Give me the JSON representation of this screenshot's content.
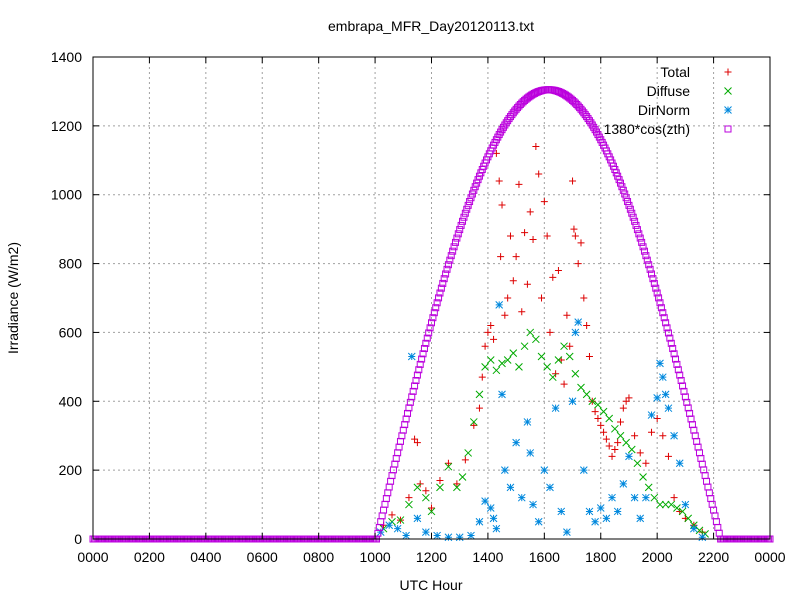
{
  "chart_data": {
    "type": "scatter",
    "title": "embrapa_MFR_Day20120113.txt",
    "xlabel": "UTC Hour",
    "ylabel": "Irradiance (W/m2)",
    "xlim": [
      0,
      24
    ],
    "ylim": [
      0,
      1400
    ],
    "x_ticks": [
      {
        "value": 0,
        "label": "0000"
      },
      {
        "value": 2,
        "label": "0200"
      },
      {
        "value": 4,
        "label": "0400"
      },
      {
        "value": 6,
        "label": "0600"
      },
      {
        "value": 8,
        "label": "0800"
      },
      {
        "value": 10,
        "label": "1000"
      },
      {
        "value": 12,
        "label": "1200"
      },
      {
        "value": 14,
        "label": "1400"
      },
      {
        "value": 16,
        "label": "1600"
      },
      {
        "value": 18,
        "label": "1800"
      },
      {
        "value": 20,
        "label": "2000"
      },
      {
        "value": 22,
        "label": "2200"
      },
      {
        "value": 24,
        "label": "0000"
      }
    ],
    "y_ticks": [
      0,
      200,
      400,
      600,
      800,
      1000,
      1200,
      1400
    ],
    "grid": true,
    "legend_position": "top-right",
    "series": [
      {
        "name": "Total",
        "marker": "plus",
        "color": "#dd0000",
        "points": [
          [
            10.3,
            40
          ],
          [
            10.6,
            70
          ],
          [
            10.9,
            55
          ],
          [
            11.2,
            120
          ],
          [
            11.4,
            290
          ],
          [
            11.5,
            280
          ],
          [
            11.6,
            160
          ],
          [
            11.8,
            140
          ],
          [
            12.0,
            90
          ],
          [
            12.3,
            170
          ],
          [
            12.6,
            220
          ],
          [
            12.9,
            160
          ],
          [
            13.2,
            230
          ],
          [
            13.5,
            330
          ],
          [
            13.7,
            380
          ],
          [
            13.8,
            470
          ],
          [
            13.9,
            560
          ],
          [
            14.0,
            600
          ],
          [
            14.1,
            620
          ],
          [
            14.2,
            580
          ],
          [
            14.3,
            1120
          ],
          [
            14.4,
            1040
          ],
          [
            14.45,
            820
          ],
          [
            14.5,
            970
          ],
          [
            14.6,
            650
          ],
          [
            14.7,
            700
          ],
          [
            14.8,
            880
          ],
          [
            14.9,
            750
          ],
          [
            15.0,
            820
          ],
          [
            15.1,
            1030
          ],
          [
            15.2,
            660
          ],
          [
            15.3,
            890
          ],
          [
            15.4,
            740
          ],
          [
            15.5,
            950
          ],
          [
            15.6,
            870
          ],
          [
            15.7,
            1140
          ],
          [
            15.8,
            1060
          ],
          [
            15.9,
            700
          ],
          [
            16.0,
            980
          ],
          [
            16.1,
            880
          ],
          [
            16.2,
            600
          ],
          [
            16.3,
            760
          ],
          [
            16.4,
            480
          ],
          [
            16.5,
            780
          ],
          [
            16.6,
            520
          ],
          [
            16.7,
            450
          ],
          [
            16.8,
            650
          ],
          [
            16.9,
            560
          ],
          [
            17.0,
            1040
          ],
          [
            17.05,
            900
          ],
          [
            17.1,
            880
          ],
          [
            17.2,
            800
          ],
          [
            17.3,
            860
          ],
          [
            17.4,
            700
          ],
          [
            17.5,
            620
          ],
          [
            17.6,
            530
          ],
          [
            17.7,
            400
          ],
          [
            17.8,
            370
          ],
          [
            17.9,
            350
          ],
          [
            18.0,
            330
          ],
          [
            18.1,
            310
          ],
          [
            18.2,
            290
          ],
          [
            18.3,
            270
          ],
          [
            18.4,
            240
          ],
          [
            18.5,
            260
          ],
          [
            18.6,
            280
          ],
          [
            18.7,
            340
          ],
          [
            18.8,
            380
          ],
          [
            18.9,
            400
          ],
          [
            19.0,
            410
          ],
          [
            19.2,
            300
          ],
          [
            19.4,
            250
          ],
          [
            19.6,
            220
          ],
          [
            19.8,
            310
          ],
          [
            20.0,
            350
          ],
          [
            20.2,
            300
          ],
          [
            20.4,
            240
          ],
          [
            20.6,
            120
          ],
          [
            20.8,
            80
          ],
          [
            21.0,
            60
          ],
          [
            21.3,
            40
          ],
          [
            21.6,
            20
          ]
        ]
      },
      {
        "name": "Diffuse",
        "marker": "cross",
        "color": "#00aa00",
        "points": [
          [
            10.3,
            30
          ],
          [
            10.6,
            50
          ],
          [
            10.9,
            55
          ],
          [
            11.2,
            100
          ],
          [
            11.5,
            150
          ],
          [
            11.8,
            120
          ],
          [
            12.0,
            80
          ],
          [
            12.3,
            150
          ],
          [
            12.6,
            210
          ],
          [
            12.9,
            150
          ],
          [
            13.1,
            180
          ],
          [
            13.3,
            250
          ],
          [
            13.5,
            340
          ],
          [
            13.7,
            420
          ],
          [
            13.9,
            500
          ],
          [
            14.1,
            520
          ],
          [
            14.3,
            490
          ],
          [
            14.5,
            510
          ],
          [
            14.7,
            520
          ],
          [
            14.9,
            540
          ],
          [
            15.1,
            500
          ],
          [
            15.3,
            560
          ],
          [
            15.5,
            600
          ],
          [
            15.7,
            580
          ],
          [
            15.9,
            530
          ],
          [
            16.1,
            500
          ],
          [
            16.3,
            470
          ],
          [
            16.5,
            520
          ],
          [
            16.7,
            560
          ],
          [
            16.9,
            530
          ],
          [
            17.1,
            480
          ],
          [
            17.3,
            440
          ],
          [
            17.5,
            420
          ],
          [
            17.7,
            400
          ],
          [
            17.9,
            390
          ],
          [
            18.1,
            370
          ],
          [
            18.3,
            350
          ],
          [
            18.5,
            320
          ],
          [
            18.7,
            300
          ],
          [
            18.9,
            280
          ],
          [
            19.1,
            260
          ],
          [
            19.3,
            220
          ],
          [
            19.5,
            180
          ],
          [
            19.7,
            150
          ],
          [
            19.9,
            120
          ],
          [
            20.1,
            100
          ],
          [
            20.3,
            100
          ],
          [
            20.5,
            100
          ],
          [
            20.7,
            90
          ],
          [
            20.9,
            80
          ],
          [
            21.1,
            60
          ],
          [
            21.3,
            40
          ],
          [
            21.5,
            25
          ],
          [
            21.7,
            15
          ]
        ]
      },
      {
        "name": "DirNorm",
        "marker": "star",
        "color": "#0088dd",
        "points": [
          [
            10.2,
            20
          ],
          [
            10.5,
            40
          ],
          [
            10.8,
            30
          ],
          [
            11.1,
            10
          ],
          [
            11.3,
            530
          ],
          [
            11.5,
            60
          ],
          [
            11.8,
            20
          ],
          [
            12.2,
            10
          ],
          [
            12.6,
            5
          ],
          [
            13.0,
            5
          ],
          [
            13.4,
            10
          ],
          [
            13.7,
            50
          ],
          [
            13.9,
            110
          ],
          [
            14.1,
            90
          ],
          [
            14.2,
            60
          ],
          [
            14.3,
            30
          ],
          [
            14.4,
            680
          ],
          [
            14.5,
            420
          ],
          [
            14.6,
            200
          ],
          [
            14.8,
            150
          ],
          [
            15.0,
            280
          ],
          [
            15.2,
            120
          ],
          [
            15.4,
            340
          ],
          [
            15.5,
            250
          ],
          [
            15.6,
            100
          ],
          [
            15.8,
            50
          ],
          [
            16.0,
            200
          ],
          [
            16.2,
            150
          ],
          [
            16.4,
            380
          ],
          [
            16.6,
            80
          ],
          [
            16.8,
            20
          ],
          [
            17.0,
            400
          ],
          [
            17.1,
            600
          ],
          [
            17.2,
            630
          ],
          [
            17.4,
            200
          ],
          [
            17.6,
            80
          ],
          [
            17.8,
            50
          ],
          [
            18.0,
            90
          ],
          [
            18.2,
            60
          ],
          [
            18.4,
            120
          ],
          [
            18.6,
            80
          ],
          [
            18.8,
            160
          ],
          [
            19.0,
            240
          ],
          [
            19.2,
            120
          ],
          [
            19.4,
            60
          ],
          [
            19.6,
            120
          ],
          [
            19.8,
            360
          ],
          [
            20.0,
            410
          ],
          [
            20.1,
            510
          ],
          [
            20.2,
            470
          ],
          [
            20.3,
            420
          ],
          [
            20.4,
            380
          ],
          [
            20.6,
            300
          ],
          [
            20.8,
            220
          ],
          [
            21.0,
            100
          ],
          [
            21.3,
            30
          ],
          [
            21.6,
            5
          ]
        ]
      },
      {
        "name": "1380*cos(zth)",
        "marker": "square",
        "color": "#bb00dd",
        "curve": {
          "type": "daylight-cosine",
          "sunrise": 10.05,
          "sunset": 22.25,
          "noon": 16.15,
          "peak": 1305
        }
      }
    ]
  }
}
